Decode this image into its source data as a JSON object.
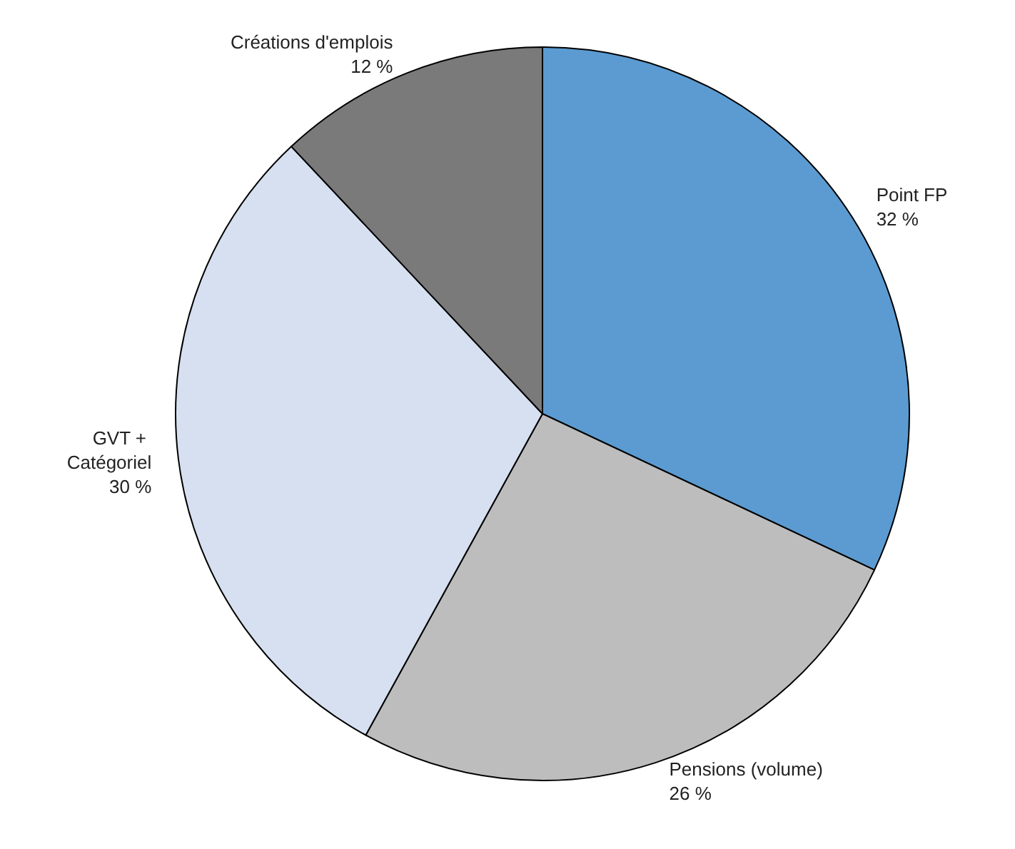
{
  "chart_data": {
    "type": "pie",
    "categories": [
      "Point FP",
      "Pensions (volume)",
      "GVT + Catégoriel",
      "Créations d'emplois"
    ],
    "values": [
      32,
      26,
      30,
      12
    ],
    "value_labels": [
      "32 %",
      "26 %",
      "30 %",
      "12 %"
    ],
    "colors": [
      "#5b9bd1",
      "#bdbdbd",
      "#d6e0f0",
      "#7a7a7a"
    ]
  }
}
